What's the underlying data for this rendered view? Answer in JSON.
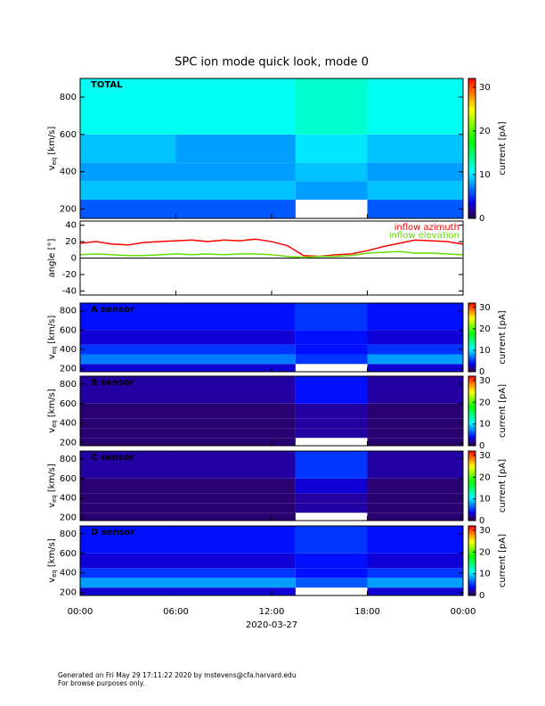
{
  "chart_data": [
    {
      "type": "heatmap",
      "title": "SPC ion mode quick look, mode 0",
      "label": "TOTAL",
      "ylabel": {
        "main": "v",
        "sub": "eq",
        "unit": "[km/s]"
      },
      "xlim": [
        0,
        24
      ],
      "ylim": [
        150,
        900
      ],
      "yticks": [
        200,
        400,
        600,
        800
      ],
      "x_bins": [
        0,
        6,
        13.5,
        18,
        24
      ],
      "y_bins": [
        150,
        250,
        350,
        450,
        600,
        900
      ],
      "values": [
        [
          6,
          9,
          8,
          9,
          11
        ],
        [
          6,
          9,
          8,
          8,
          11
        ],
        [
          null,
          8,
          9,
          10,
          12
        ],
        [
          6,
          9,
          8,
          9,
          11
        ]
      ],
      "colorbar": {
        "label": "current [pA]",
        "lim": [
          0,
          32
        ],
        "ticks": [
          0,
          10,
          20,
          30
        ]
      }
    },
    {
      "type": "line",
      "ylabel": "angle [°]",
      "xlim": [
        0,
        24
      ],
      "ylim": [
        -45,
        45
      ],
      "yticks": [
        -40,
        -20,
        0,
        20,
        40
      ],
      "x": [
        0,
        1,
        2,
        3,
        4,
        5,
        6,
        7,
        8,
        9,
        10,
        11,
        12,
        13,
        14,
        15,
        16,
        17,
        18,
        19,
        20,
        21,
        22,
        23,
        24
      ],
      "series": [
        {
          "name": "inflow azimuth",
          "color": "#ff0000",
          "values": [
            18,
            20,
            17,
            16,
            19,
            20,
            21,
            22,
            20,
            22,
            21,
            23,
            20,
            15,
            3,
            2,
            4,
            5,
            9,
            14,
            18,
            22,
            21,
            20,
            17
          ]
        },
        {
          "name": "inflow elevation",
          "color": "#66dd00",
          "values": [
            4,
            5,
            4,
            3,
            3,
            4,
            5,
            4,
            5,
            4,
            5,
            5,
            4,
            2,
            1,
            2,
            2,
            3,
            6,
            7,
            8,
            6,
            6,
            5,
            4
          ]
        }
      ],
      "legend": "upper right"
    },
    {
      "type": "heatmap",
      "label": "A sensor",
      "ylabel": {
        "main": "v",
        "sub": "eq",
        "unit": "[km/s]"
      },
      "xlim": [
        0,
        24
      ],
      "ylim": [
        170,
        880
      ],
      "yticks": [
        200,
        400,
        600,
        800
      ],
      "x_bins": [
        0,
        6,
        13.5,
        18,
        24
      ],
      "y_bins": [
        170,
        250,
        350,
        450,
        600,
        880
      ],
      "values": [
        [
          3,
          7,
          5,
          3,
          4
        ],
        [
          3,
          7,
          5,
          3,
          4
        ],
        [
          null,
          5,
          4,
          4,
          5
        ],
        [
          3,
          8,
          5,
          3,
          4
        ]
      ],
      "colorbar": {
        "label": "current [pA]",
        "lim": [
          0,
          32
        ],
        "ticks": [
          0,
          10,
          20,
          30
        ]
      }
    },
    {
      "type": "heatmap",
      "label": "B sensor",
      "ylabel": {
        "main": "v",
        "sub": "eq",
        "unit": "[km/s]"
      },
      "xlim": [
        0,
        24
      ],
      "ylim": [
        170,
        880
      ],
      "yticks": [
        200,
        400,
        600,
        800
      ],
      "x_bins": [
        0,
        6,
        13.5,
        18,
        24
      ],
      "y_bins": [
        170,
        250,
        350,
        450,
        600,
        880
      ],
      "values": [
        [
          1,
          1,
          1,
          1,
          2
        ],
        [
          1,
          1,
          1,
          1,
          2
        ],
        [
          null,
          2,
          2,
          2,
          4
        ],
        [
          1,
          1,
          1,
          1,
          2
        ]
      ],
      "colorbar": {
        "label": "current [pA]",
        "lim": [
          0,
          32
        ],
        "ticks": [
          0,
          10,
          20,
          30
        ]
      }
    },
    {
      "type": "heatmap",
      "label": "C sensor",
      "ylabel": {
        "main": "v",
        "sub": "eq",
        "unit": "[km/s]"
      },
      "xlim": [
        0,
        24
      ],
      "ylim": [
        170,
        880
      ],
      "yticks": [
        200,
        400,
        600,
        800
      ],
      "x_bins": [
        0,
        6,
        13.5,
        18,
        24
      ],
      "y_bins": [
        170,
        250,
        350,
        450,
        600,
        880
      ],
      "values": [
        [
          1,
          1,
          1,
          1,
          2
        ],
        [
          1,
          1,
          1,
          1,
          2
        ],
        [
          null,
          2,
          2,
          3,
          5
        ],
        [
          1,
          1,
          1,
          1,
          2
        ]
      ],
      "colorbar": {
        "label": "current [pA]",
        "lim": [
          0,
          32
        ],
        "ticks": [
          0,
          10,
          20,
          30
        ]
      }
    },
    {
      "type": "heatmap",
      "label": "D sensor",
      "ylabel": {
        "main": "v",
        "sub": "eq",
        "unit": "[km/s]"
      },
      "xlim": [
        0,
        24
      ],
      "ylim": [
        170,
        880
      ],
      "yticks": [
        200,
        400,
        600,
        800
      ],
      "x_bins": [
        0,
        6,
        13.5,
        18,
        24
      ],
      "y_bins": [
        170,
        250,
        350,
        450,
        600,
        880
      ],
      "values": [
        [
          3,
          8,
          5,
          3,
          4
        ],
        [
          3,
          8,
          5,
          3,
          4
        ],
        [
          null,
          6,
          4,
          4,
          5
        ],
        [
          3,
          8,
          5,
          3,
          4
        ]
      ],
      "colorbar": {
        "label": "current [pA]",
        "lim": [
          0,
          32
        ],
        "ticks": [
          0,
          10,
          20,
          30
        ]
      },
      "xticks": [
        {
          "value": 0,
          "label": "00:00"
        },
        {
          "value": 6,
          "label": "06:00"
        },
        {
          "value": 12,
          "label": "12:00"
        },
        {
          "value": 18,
          "label": "18:00"
        },
        {
          "value": 24,
          "label": "00:00"
        }
      ],
      "xlabel": "2020-03-27"
    }
  ],
  "footer": [
    "Generated on Fri May 29 17:11:22 2020 by mstevens@cfa.harvard.edu",
    "For browse purposes only."
  ]
}
